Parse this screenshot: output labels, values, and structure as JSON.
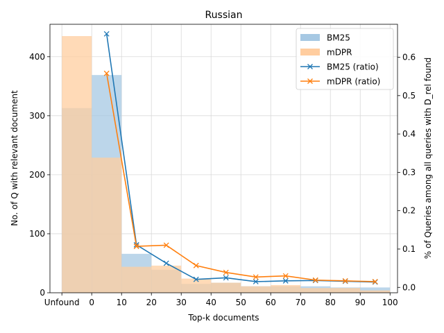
{
  "chart_data": {
    "type": "bar",
    "title": "Russian",
    "xlabel": "Top-k documents",
    "ylabel": "No. of Q with relevant document",
    "y2label": "% of Queries among all queries with D_rel found",
    "xtick_labels": [
      "Unfound",
      "0",
      "10",
      "20",
      "30",
      "40",
      "50",
      "60",
      "70",
      "80",
      "90",
      "100"
    ],
    "xtick_values": [
      -10,
      0,
      10,
      20,
      30,
      40,
      50,
      60,
      70,
      80,
      90,
      100
    ],
    "xlim": [
      -14,
      102.5
    ],
    "ylim": [
      0,
      455
    ],
    "yticks": [
      0,
      100,
      200,
      300,
      400
    ],
    "y2lim": [
      -0.014,
      0.686
    ],
    "y2ticks": [
      "0.0",
      "0.1",
      "0.2",
      "0.3",
      "0.4",
      "0.5",
      "0.6"
    ],
    "y2tick_values": [
      0.0,
      0.1,
      0.2,
      0.3,
      0.4,
      0.5,
      0.6
    ],
    "grid": true,
    "legend_position": "top-right",
    "bin_edges": [
      -10,
      0,
      10,
      20,
      30,
      40,
      50,
      60,
      70,
      80,
      90,
      100
    ],
    "bars": [
      {
        "name": "BM25",
        "color": "#a6c8e3",
        "values": [
          313,
          369,
          66,
          39,
          15,
          17,
          11,
          11,
          11,
          9,
          9
        ]
      },
      {
        "name": "mDPR",
        "color": "#ffcd9f",
        "values": [
          435,
          229,
          44,
          46,
          24,
          17,
          11,
          13,
          8,
          8,
          4
        ]
      }
    ],
    "lines": [
      {
        "name": "BM25 (ratio)",
        "color": "#1f77b4",
        "x": [
          5,
          15,
          25,
          35,
          45,
          55,
          65,
          75,
          85,
          95
        ],
        "values": [
          0.661,
          0.111,
          0.063,
          0.021,
          0.025,
          0.015,
          0.017,
          0.018,
          0.016,
          0.014
        ]
      },
      {
        "name": "mDPR (ratio)",
        "color": "#ff7f0e",
        "x": [
          5,
          15,
          25,
          35,
          45,
          55,
          65,
          75,
          85,
          95
        ],
        "values": [
          0.558,
          0.107,
          0.11,
          0.057,
          0.039,
          0.027,
          0.03,
          0.019,
          0.017,
          0.015
        ]
      }
    ]
  }
}
